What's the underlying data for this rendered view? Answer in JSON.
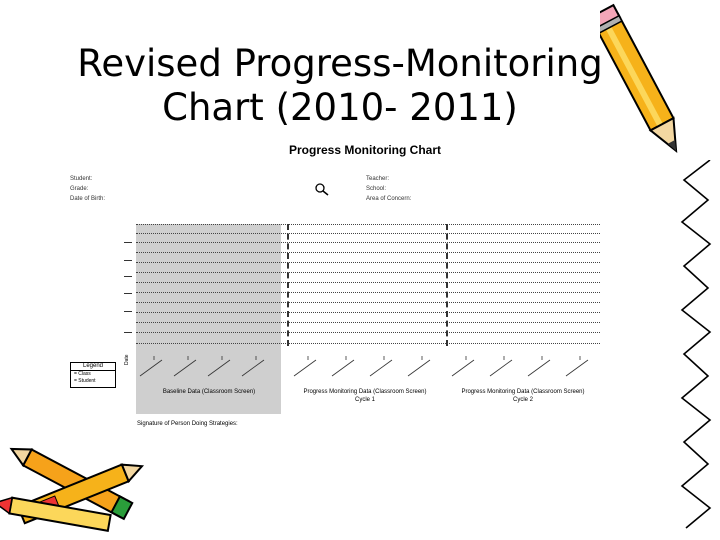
{
  "slide": {
    "title_line1": "Revised Progress-Monitoring",
    "title_line2": "Chart (2010- 2011)"
  },
  "form": {
    "chart_title": "Progress Monitoring Chart",
    "left_fields": [
      "Student:",
      "Grade:",
      "Date of Birth:"
    ],
    "right_fields": [
      "Teacher:",
      "School:",
      "Area of Concern:"
    ],
    "legend_title": "Legend",
    "legend_items": [
      "= Class",
      "= Student"
    ],
    "date_axis_label": "Date",
    "sections": [
      {
        "line1": "Baseline Data (Classroom Screen)",
        "line2": ""
      },
      {
        "line1": "Progress Monitoring Data (Classroom Screen)",
        "line2": "Cycle 1"
      },
      {
        "line1": "Progress Monitoring Data (Classroom Screen)",
        "line2": "Cycle 2"
      }
    ],
    "signature": "Signature of Person Doing Strategies:"
  }
}
